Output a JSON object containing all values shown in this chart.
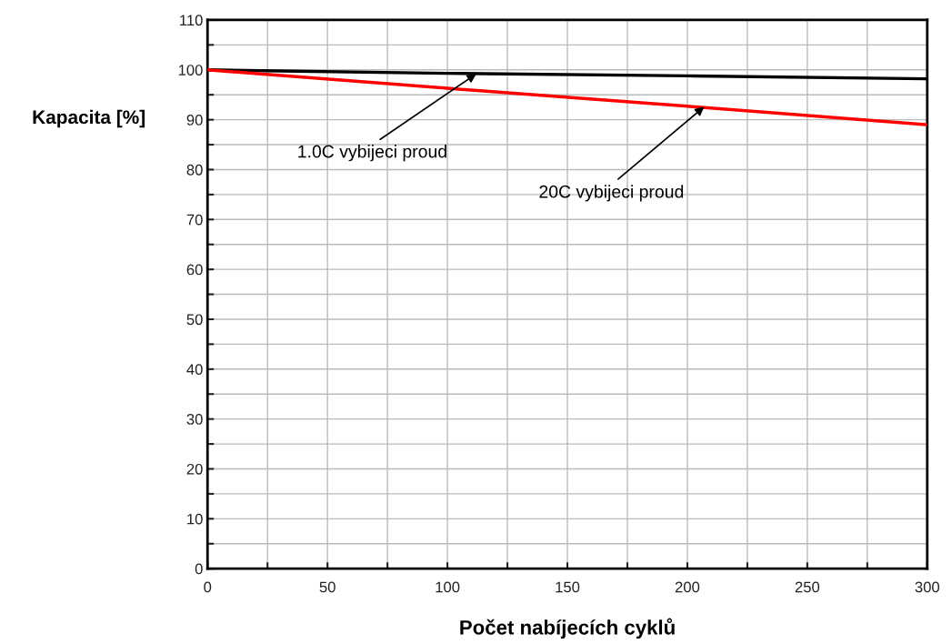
{
  "chart_data": {
    "type": "line",
    "xlabel": "Počet nabíjecích cyklů",
    "ylabel": "Kapacita [%]",
    "x": [
      0,
      100,
      200,
      300
    ],
    "series": [
      {
        "color": "#000000",
        "values": [
          100,
          99.3,
          98.8,
          98.2
        ]
      },
      {
        "color": "#ff0000",
        "values": [
          100,
          96.3,
          92.7,
          89
        ]
      }
    ],
    "xlim": [
      0,
      300
    ],
    "ylim": [
      0,
      110
    ],
    "xticks": [
      0,
      {
        "value": 25,
        "label": null
      },
      50,
      {
        "value": 75,
        "label": null
      },
      100,
      {
        "value": 125,
        "label": null
      },
      150,
      {
        "value": 175,
        "label": null
      },
      200,
      {
        "value": 225,
        "label": null
      },
      250,
      {
        "value": 275,
        "label": null
      },
      300
    ],
    "yticks": [
      0,
      {
        "value": 5,
        "label": null
      },
      10,
      {
        "value": 15,
        "label": null
      },
      20,
      {
        "value": 25,
        "label": null
      },
      30,
      {
        "value": 35,
        "label": null
      },
      40,
      {
        "value": 45,
        "label": null
      },
      50,
      {
        "value": 55,
        "label": null
      },
      60,
      {
        "value": 65,
        "label": null
      },
      70,
      {
        "value": 75,
        "label": null
      },
      80,
      {
        "value": 85,
        "label": null
      },
      90,
      {
        "value": 95,
        "label": null
      },
      100,
      {
        "value": 105,
        "label": null
      },
      110
    ],
    "grid": true,
    "annotations": [
      {
        "text": "1.0C vybijeci proud",
        "x": 112,
        "y": 99.2
      },
      {
        "text": "20C vybijeci proud",
        "x": 207,
        "y": 92.6
      }
    ]
  }
}
